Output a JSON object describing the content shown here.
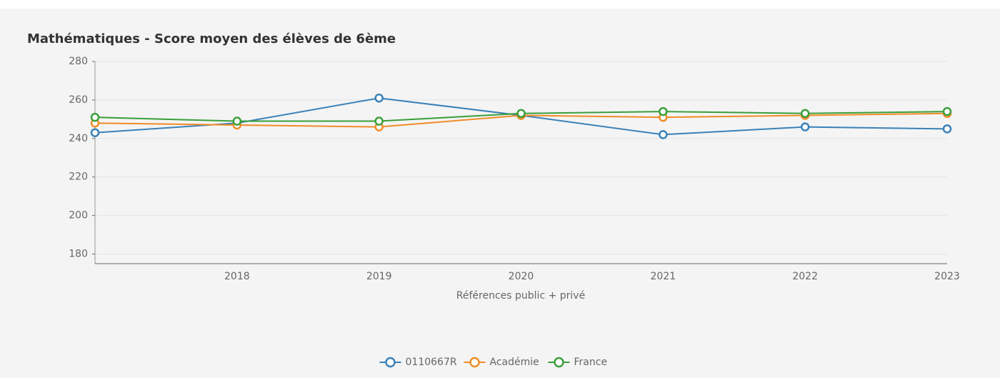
{
  "chart_data": {
    "type": "line",
    "title": "Mathématiques - Score moyen des élèves de 6ème",
    "x_label": "Références public + privé",
    "categories": [
      null,
      "2018",
      "2019",
      "2020",
      "2021",
      "2022",
      "2023"
    ],
    "series": [
      {
        "name": "0110667R",
        "color": "#3a81b8",
        "values": [
          243,
          248,
          261,
          252,
          242,
          246,
          245
        ]
      },
      {
        "name": "Académie",
        "color": "#f08c28",
        "values": [
          248,
          247,
          246,
          252,
          251,
          252,
          253
        ]
      },
      {
        "name": "France",
        "color": "#3a9e3a",
        "values": [
          251,
          249,
          249,
          253,
          254,
          253,
          254
        ]
      }
    ],
    "ylim": [
      175,
      280
    ],
    "yticks": [
      180,
      200,
      220,
      240,
      260,
      280
    ],
    "grid": true,
    "legend": "bottom"
  }
}
